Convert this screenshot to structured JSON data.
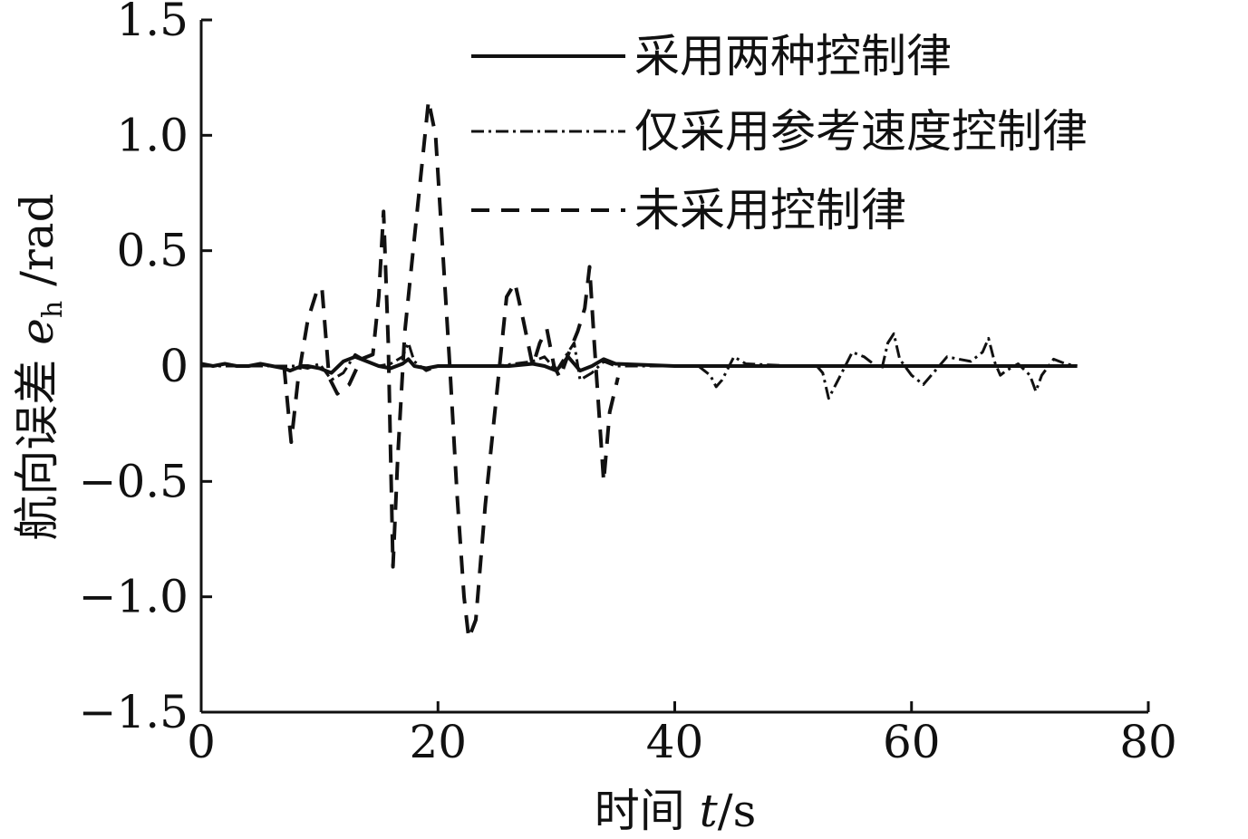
{
  "chart_data": {
    "type": "line",
    "xlabel": {
      "prefix": "时间 ",
      "var": "t",
      "suffix": "/s"
    },
    "ylabel": {
      "prefix": "航向误差 ",
      "var": "e",
      "sub": "h",
      "suffix": " /rad"
    },
    "xlim": [
      0,
      80
    ],
    "ylim": [
      -1.5,
      1.5
    ],
    "x_ticks": [
      "0",
      "20",
      "40",
      "60",
      "80"
    ],
    "y_ticks": [
      "1.5",
      "1.0",
      "0.5",
      "0",
      "−0.5",
      "−1.0",
      "−1.5"
    ],
    "grid": false,
    "legend_position": "top-right",
    "colors": {
      "line": "#111111",
      "axis": "#111111"
    },
    "series": [
      {
        "name": "采用两种控制律",
        "style": "solid",
        "x": [
          0,
          1,
          2,
          3,
          4,
          5,
          6,
          7,
          7.5,
          8,
          8.5,
          9,
          10,
          11,
          12,
          13,
          14,
          15,
          16,
          17,
          17.5,
          18,
          19,
          20,
          22,
          24,
          26,
          28,
          29,
          30,
          30.5,
          31,
          31.5,
          32,
          33,
          34,
          35,
          40,
          42,
          43,
          44,
          45,
          46,
          50,
          52,
          53,
          54,
          55,
          56,
          57,
          58,
          59,
          60,
          61,
          62,
          63,
          64,
          65,
          66,
          67,
          68,
          69,
          70,
          71,
          72,
          73,
          74
        ],
        "y": [
          0.01,
          0.0,
          0.01,
          0.0,
          0.0,
          0.01,
          0.0,
          -0.01,
          -0.02,
          -0.01,
          0.0,
          0.0,
          -0.01,
          -0.03,
          0.02,
          0.04,
          0.02,
          0.0,
          -0.01,
          0.01,
          0.03,
          0.0,
          -0.01,
          0.0,
          0.0,
          0.0,
          0.0,
          0.01,
          0.0,
          -0.02,
          0.01,
          0.04,
          0.01,
          -0.02,
          0.0,
          0.03,
          0.01,
          0.0,
          0.0,
          0.0,
          0.0,
          0.0,
          0.0,
          0.0,
          0.0,
          0.0,
          0.0,
          0.0,
          0.0,
          0.0,
          0.0,
          0.0,
          0.0,
          0.0,
          0.0,
          0.0,
          0.0,
          0.0,
          0.0,
          0.0,
          0.0,
          0.0,
          0.0,
          0.0,
          0.0,
          0.0,
          0.0
        ]
      },
      {
        "name": "仅采用参考速度控制律",
        "style": "dashdot",
        "x": [
          0,
          2,
          4,
          6,
          8,
          9,
          10,
          11,
          12,
          13,
          14,
          15,
          16,
          17,
          17.5,
          18,
          19,
          20,
          25,
          28,
          29,
          30,
          31,
          31.5,
          32,
          33,
          34,
          35,
          40,
          42,
          43,
          43.5,
          44,
          45,
          46,
          50,
          52,
          52.5,
          53,
          54,
          55,
          56,
          57,
          57.5,
          58,
          58.5,
          59,
          60,
          61,
          62,
          63,
          64,
          65,
          66,
          66.5,
          67,
          67.5,
          68,
          69,
          70,
          70.5,
          71,
          72,
          73,
          74
        ],
        "y": [
          0.0,
          0.0,
          0.0,
          0.0,
          0.0,
          -0.01,
          0.01,
          -0.06,
          -0.03,
          0.05,
          0.02,
          0.0,
          0.01,
          0.04,
          0.1,
          0.02,
          -0.02,
          0.0,
          0.0,
          0.02,
          0.04,
          -0.02,
          0.06,
          0.1,
          -0.06,
          -0.03,
          0.02,
          0.0,
          0.0,
          0.0,
          -0.04,
          -0.09,
          -0.06,
          0.04,
          0.01,
          0.0,
          0.0,
          -0.03,
          -0.14,
          -0.04,
          0.06,
          0.04,
          0.0,
          -0.01,
          0.1,
          0.14,
          0.03,
          -0.04,
          -0.08,
          -0.02,
          0.04,
          0.03,
          0.02,
          0.06,
          0.12,
          0.02,
          -0.04,
          -0.02,
          0.01,
          -0.04,
          -0.11,
          -0.04,
          0.03,
          0.01,
          0.0
        ]
      },
      {
        "name": "未采用控制律",
        "style": "dashed",
        "x": [
          7,
          7.6,
          8.2,
          9,
          9.8,
          10.2,
          10.8,
          11.5,
          12.5,
          13.5,
          14.5,
          15,
          15.4,
          15.8,
          16.2,
          16.6,
          17.2,
          18,
          18.8,
          19.2,
          19.8,
          20.4,
          21,
          21.6,
          22.2,
          22.6,
          23.2,
          24,
          25,
          25.8,
          26.5,
          27.2,
          28,
          28.6,
          29.2,
          29.8,
          30.3,
          31,
          31.8,
          32.4,
          32.8,
          33.2,
          33.6,
          34,
          34.5,
          35.2
        ],
        "y": [
          0.0,
          -0.33,
          -0.05,
          0.2,
          0.33,
          0.34,
          -0.05,
          -0.12,
          -0.08,
          0.03,
          0.05,
          0.3,
          0.67,
          0.1,
          -0.87,
          -0.4,
          0.15,
          0.55,
          0.95,
          1.15,
          1.0,
          0.5,
          0.0,
          -0.55,
          -1.0,
          -1.18,
          -1.1,
          -0.6,
          -0.1,
          0.3,
          0.36,
          0.2,
          0.0,
          0.1,
          0.16,
          0.0,
          -0.05,
          0.05,
          0.15,
          0.25,
          0.43,
          0.1,
          -0.2,
          -0.5,
          -0.2,
          -0.05
        ]
      }
    ]
  }
}
